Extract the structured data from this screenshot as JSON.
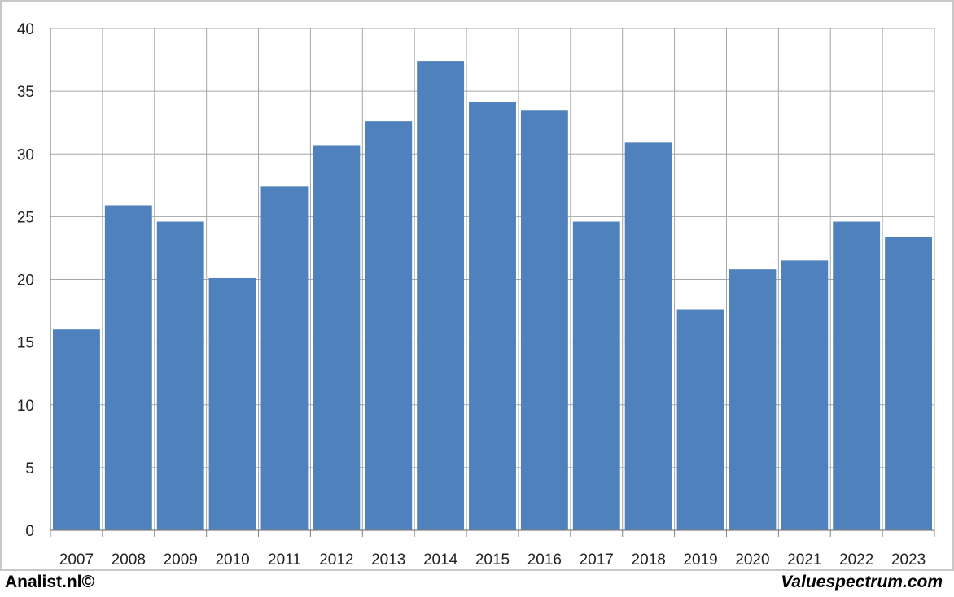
{
  "chart_data": {
    "type": "bar",
    "title": "",
    "xlabel": "",
    "ylabel": "",
    "categories": [
      "2007",
      "2008",
      "2009",
      "2010",
      "2011",
      "2012",
      "2013",
      "2014",
      "2015",
      "2016",
      "2017",
      "2018",
      "2019",
      "2020",
      "2021",
      "2022",
      "2023"
    ],
    "values": [
      16.0,
      25.9,
      24.6,
      20.1,
      27.4,
      30.7,
      32.6,
      37.4,
      34.1,
      33.5,
      24.6,
      30.9,
      17.6,
      20.8,
      21.5,
      24.6,
      23.4
    ],
    "ylim": [
      0,
      40
    ],
    "yticks": [
      0,
      5,
      10,
      15,
      20,
      25,
      30,
      35,
      40
    ],
    "grid": true,
    "bar_color": "#4f81bd",
    "grid_color": "#a6a6a6"
  },
  "footer": {
    "left": "Analist.nl©",
    "right": "Valuespectrum.com"
  }
}
